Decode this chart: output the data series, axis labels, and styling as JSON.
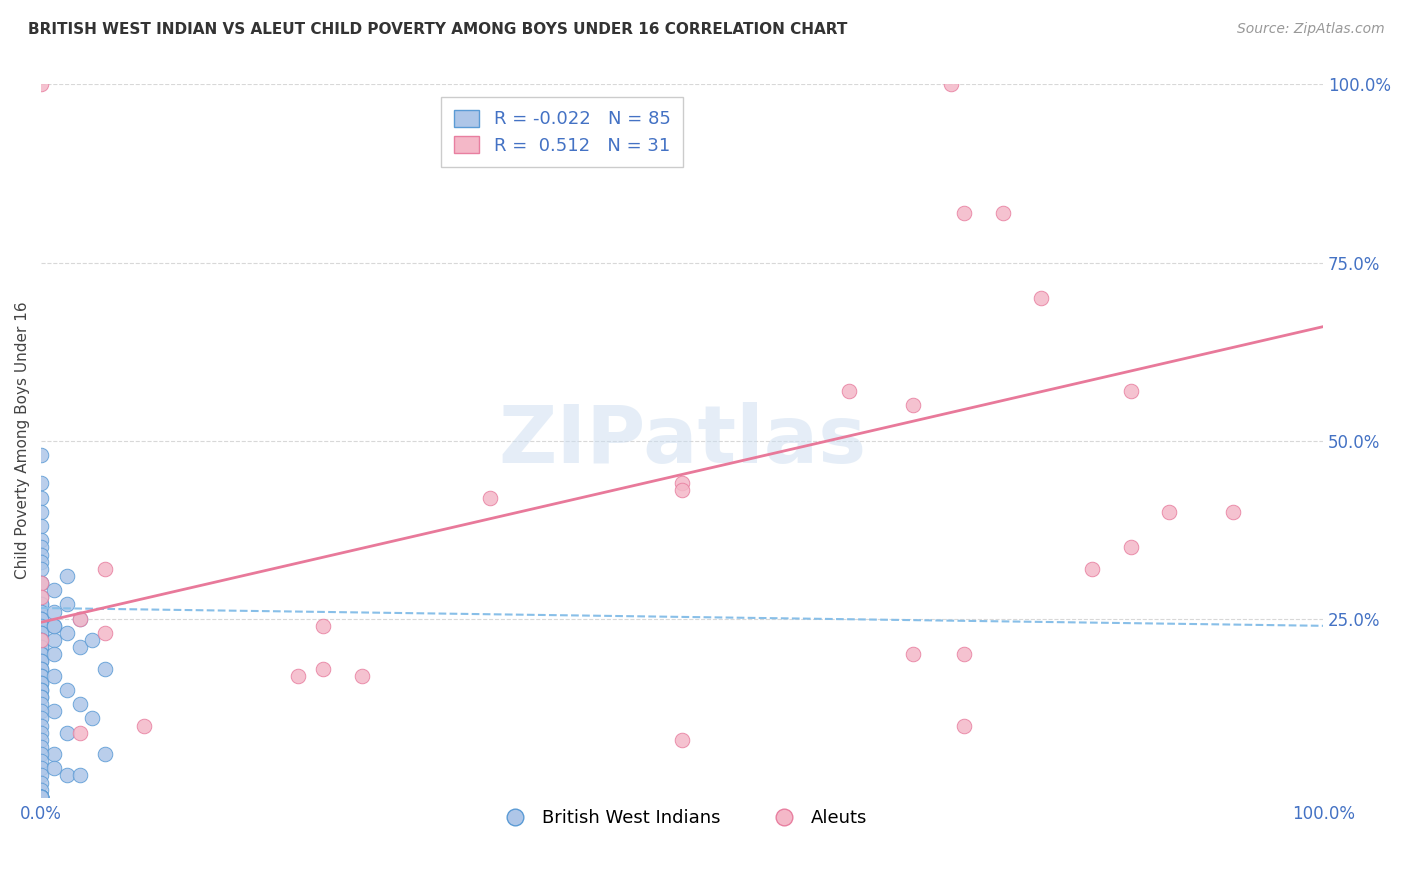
{
  "title": "BRITISH WEST INDIAN VS ALEUT CHILD POVERTY AMONG BOYS UNDER 16 CORRELATION CHART",
  "source": "Source: ZipAtlas.com",
  "ylabel": "Child Poverty Among Boys Under 16",
  "watermark": "ZIPatlas",
  "blue_label": "British West Indians",
  "pink_label": "Aleuts",
  "blue_R": -0.022,
  "blue_N": 85,
  "pink_R": 0.512,
  "pink_N": 31,
  "blue_color": "#aec6e8",
  "blue_edge": "#5b9bd5",
  "pink_color": "#f4b8c8",
  "pink_edge": "#e87fa0",
  "blue_line_color": "#88bfe8",
  "pink_line_color": "#e8799a",
  "background_color": "#ffffff",
  "grid_color": "#d8d8d8",
  "xlim": [
    0,
    1
  ],
  "ylim": [
    0,
    1
  ],
  "x_ticks": [
    0.0,
    0.25,
    0.5,
    0.75,
    1.0
  ],
  "x_tick_labels": [
    "0.0%",
    "",
    "",
    "",
    "100.0%"
  ],
  "y_ticks": [
    0.25,
    0.5,
    0.75,
    1.0
  ],
  "y_tick_labels_right": [
    "25.0%",
    "50.0%",
    "75.0%",
    "100.0%"
  ],
  "blue_scatter_x": [
    0.0,
    0.0,
    0.0,
    0.0,
    0.0,
    0.0,
    0.0,
    0.0,
    0.0,
    0.0,
    0.0,
    0.0,
    0.0,
    0.0,
    0.0,
    0.0,
    0.0,
    0.0,
    0.0,
    0.0,
    0.0,
    0.0,
    0.0,
    0.0,
    0.0,
    0.0,
    0.0,
    0.0,
    0.0,
    0.0,
    0.0,
    0.0,
    0.0,
    0.0,
    0.0,
    0.0,
    0.0,
    0.0,
    0.0,
    0.0,
    0.01,
    0.01,
    0.01,
    0.01,
    0.01,
    0.01,
    0.01,
    0.01,
    0.02,
    0.02,
    0.02,
    0.02,
    0.02,
    0.03,
    0.03,
    0.03,
    0.04,
    0.04,
    0.05,
    0.05,
    0.0,
    0.0,
    0.0,
    0.0,
    0.0,
    0.0,
    0.0,
    0.0,
    0.0,
    0.0,
    0.0,
    0.0,
    0.0,
    0.0,
    0.0,
    0.0,
    0.0,
    0.0,
    0.0,
    0.0,
    0.01,
    0.02,
    0.03,
    0.01,
    0.0
  ],
  "blue_scatter_y": [
    0.48,
    0.44,
    0.42,
    0.4,
    0.38,
    0.36,
    0.35,
    0.34,
    0.33,
    0.32,
    0.3,
    0.3,
    0.28,
    0.27,
    0.27,
    0.26,
    0.25,
    0.25,
    0.24,
    0.23,
    0.23,
    0.22,
    0.22,
    0.21,
    0.21,
    0.2,
    0.2,
    0.19,
    0.19,
    0.18,
    0.18,
    0.17,
    0.17,
    0.16,
    0.16,
    0.15,
    0.15,
    0.14,
    0.14,
    0.13,
    0.29,
    0.26,
    0.24,
    0.22,
    0.2,
    0.17,
    0.12,
    0.06,
    0.31,
    0.27,
    0.23,
    0.15,
    0.09,
    0.25,
    0.21,
    0.13,
    0.22,
    0.11,
    0.18,
    0.06,
    0.12,
    0.11,
    0.1,
    0.09,
    0.08,
    0.07,
    0.06,
    0.05,
    0.04,
    0.03,
    0.02,
    0.01,
    0.0,
    0.0,
    0.0,
    0.0,
    0.0,
    0.0,
    0.0,
    0.0,
    0.04,
    0.03,
    0.03,
    0.24,
    0.0
  ],
  "pink_scatter_x": [
    0.0,
    0.0,
    0.0,
    0.0,
    0.03,
    0.03,
    0.05,
    0.05,
    0.08,
    0.2,
    0.22,
    0.22,
    0.25,
    0.35,
    0.5,
    0.5,
    0.5,
    0.63,
    0.68,
    0.68,
    0.71,
    0.72,
    0.72,
    0.72,
    0.75,
    0.78,
    0.82,
    0.85,
    0.85,
    0.88,
    0.93
  ],
  "pink_scatter_y": [
    1.0,
    0.3,
    0.28,
    0.22,
    0.25,
    0.09,
    0.23,
    0.32,
    0.1,
    0.17,
    0.18,
    0.24,
    0.17,
    0.42,
    0.08,
    0.44,
    0.43,
    0.57,
    0.55,
    0.2,
    1.0,
    0.82,
    0.2,
    0.1,
    0.82,
    0.7,
    0.32,
    0.57,
    0.35,
    0.4,
    0.4
  ],
  "blue_trend": [
    0.265,
    0.24
  ],
  "pink_trend": [
    0.245,
    0.66
  ],
  "marker_size": 110
}
